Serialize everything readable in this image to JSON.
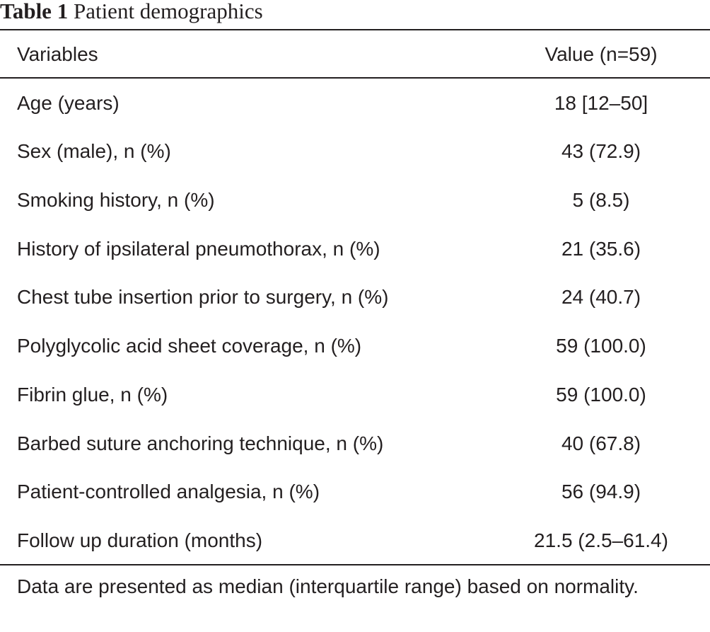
{
  "table": {
    "label": "Table 1",
    "title": "Patient demographics",
    "columns": [
      "Variables",
      "Value (n=59)"
    ],
    "rows": [
      {
        "variable": "Age (years)",
        "value": "18 [12–50]"
      },
      {
        "variable": "Sex (male), n (%)",
        "value": "43 (72.9)"
      },
      {
        "variable": "Smoking history, n (%)",
        "value": "5 (8.5)"
      },
      {
        "variable": "History of ipsilateral pneumothorax, n (%)",
        "value": "21 (35.6)"
      },
      {
        "variable": "Chest tube insertion prior to surgery, n (%)",
        "value": "24 (40.7)"
      },
      {
        "variable": "Polyglycolic acid sheet coverage, n (%)",
        "value": "59 (100.0)"
      },
      {
        "variable": "Fibrin glue, n (%)",
        "value": "59 (100.0)"
      },
      {
        "variable": "Barbed suture anchoring technique, n (%)",
        "value": "40 (67.8)"
      },
      {
        "variable": "Patient-controlled analgesia, n (%)",
        "value": "56 (94.9)"
      },
      {
        "variable": "Follow up duration (months)",
        "value": "21.5 (2.5–61.4)"
      }
    ],
    "footnote": "Data are presented as median (interquartile range) based on normality."
  }
}
